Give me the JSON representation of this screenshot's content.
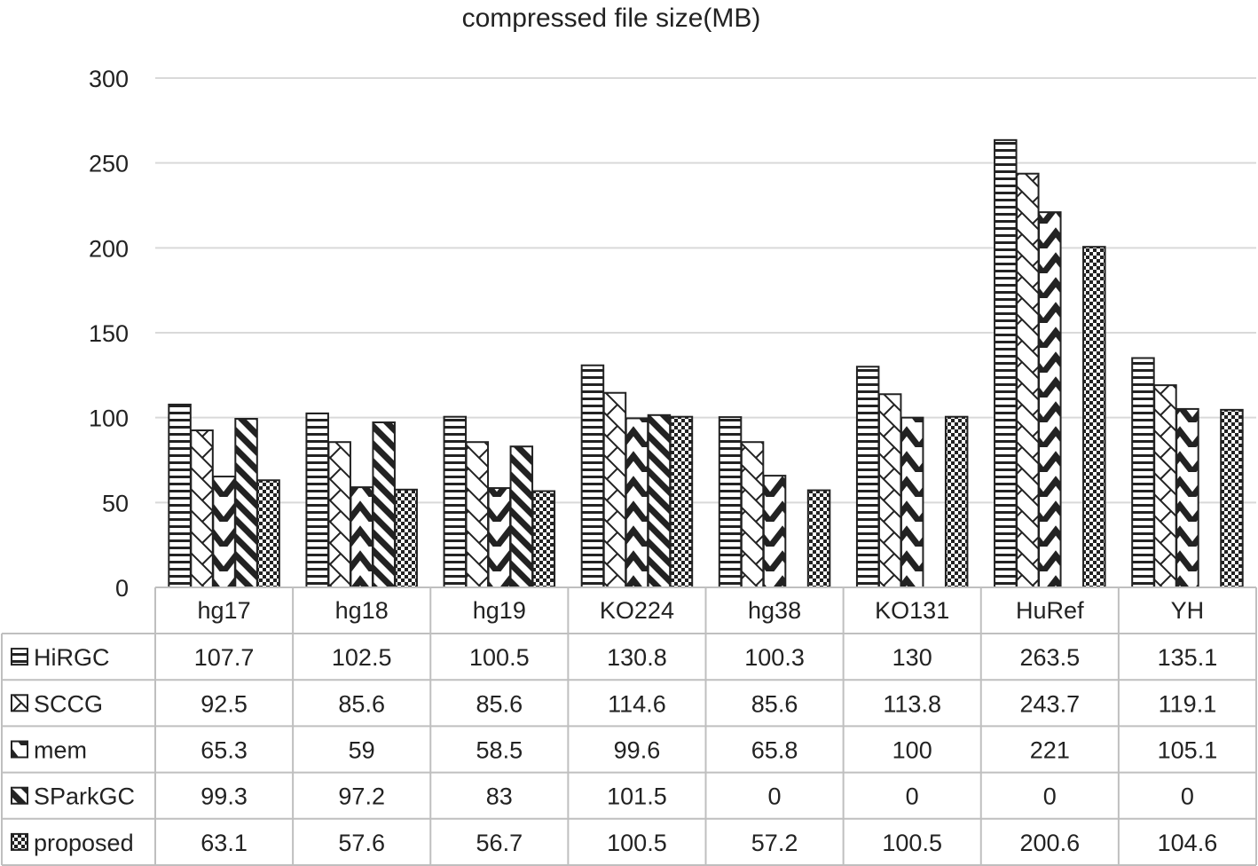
{
  "chart_data": {
    "type": "bar",
    "title": "compressed file size(MB)",
    "xlabel": "",
    "ylabel": "",
    "ylim": [
      0,
      300
    ],
    "yticks": [
      0,
      50,
      100,
      150,
      200,
      250,
      300
    ],
    "grid": true,
    "legend": "table-left",
    "categories": [
      "hg17",
      "hg18",
      "hg19",
      "KO224",
      "hg38",
      "KO131",
      "HuRef",
      "YH"
    ],
    "series": [
      {
        "name": "HiRGC",
        "pattern": "horizontal-stripes",
        "values": [
          107.7,
          102.5,
          100.5,
          130.8,
          100.3,
          130,
          263.5,
          135.1
        ]
      },
      {
        "name": "SCCG",
        "pattern": "zigzag",
        "values": [
          92.5,
          85.6,
          85.6,
          114.6,
          85.6,
          113.8,
          243.7,
          119.1
        ]
      },
      {
        "name": "mem",
        "pattern": "diagonal-chevron",
        "values": [
          65.3,
          59,
          58.5,
          99.6,
          65.8,
          100,
          221,
          105.1
        ]
      },
      {
        "name": "SParkGC",
        "pattern": "backslash-stripes",
        "values": [
          99.3,
          97.2,
          83,
          101.5,
          0,
          0,
          0,
          0
        ]
      },
      {
        "name": "proposed",
        "pattern": "checker",
        "values": [
          63.1,
          57.6,
          56.7,
          100.5,
          57.2,
          100.5,
          200.6,
          104.6
        ]
      }
    ],
    "colors": {
      "ink": "#222222",
      "grid": "#d9d9d9",
      "table": "#bfbfbf"
    }
  }
}
